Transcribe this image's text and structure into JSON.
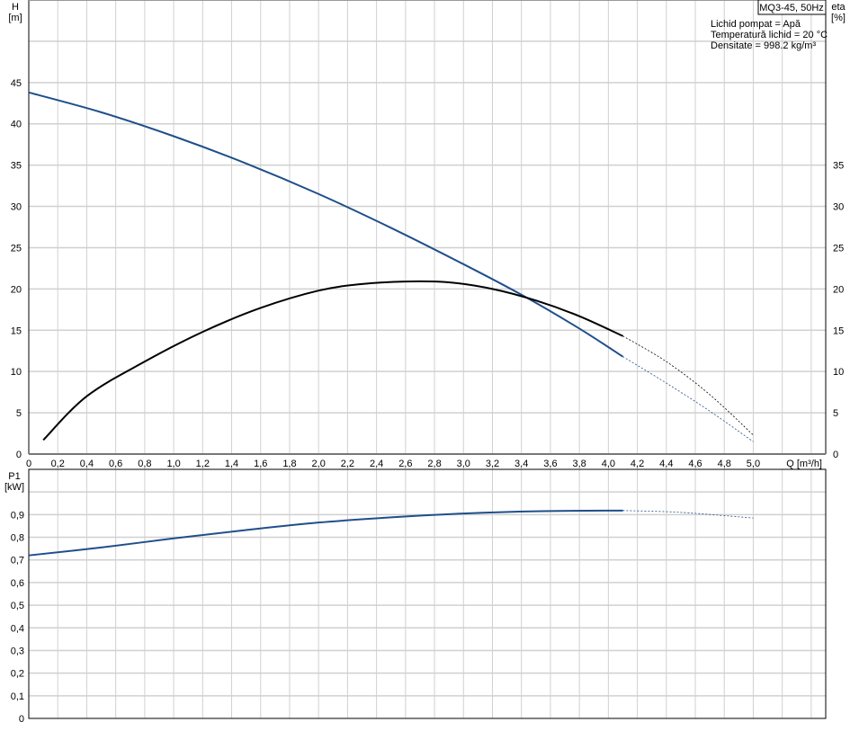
{
  "chart_data": [
    {
      "type": "line",
      "title": "MQ3-45, 50Hz",
      "annotations": [
        "Lichid pompat = Apă",
        "Temperatură lichid = 20 °C",
        "Densitate = 998.2 kg/m³"
      ],
      "xlabel": "Q [m³/h]",
      "ylabel": "H\n[m]",
      "ylabel_lines": [
        "H",
        "[m]"
      ],
      "y2label_lines": [
        "eta",
        "[%]"
      ],
      "xlim": [
        0,
        5.5
      ],
      "ylim": [
        0,
        55
      ],
      "grid": true,
      "x_ticks": [
        "0",
        "0,2",
        "0,4",
        "0,6",
        "0,8",
        "1,0",
        "1,2",
        "1,4",
        "1,6",
        "1,8",
        "2,0",
        "2,2",
        "2,4",
        "2,6",
        "2,8",
        "3,0",
        "3,2",
        "3,4",
        "3,6",
        "3,8",
        "4,0",
        "4,2",
        "4,4",
        "4,6",
        "4,8",
        "5,0"
      ],
      "y_ticks": [
        "0",
        "5",
        "10",
        "15",
        "20",
        "25",
        "30",
        "35",
        "40",
        "45"
      ],
      "y2_ticks": [
        "0",
        "5",
        "10",
        "15",
        "20",
        "25",
        "30",
        "35"
      ],
      "series": [
        {
          "name": "H",
          "color": "#1f4f8a",
          "x": [
            0,
            0.5,
            1.0,
            1.5,
            2.0,
            2.5,
            3.0,
            3.4,
            3.8,
            4.1
          ],
          "y": [
            43.8,
            41.4,
            38.5,
            35.2,
            31.5,
            27.4,
            23.0,
            19.3,
            15.2,
            11.8
          ],
          "extrapolated": {
            "x": [
              4.1,
              4.4,
              4.7,
              5.0
            ],
            "y": [
              11.8,
              8.6,
              5.2,
              1.5
            ]
          }
        },
        {
          "name": "eta",
          "color": "#000000",
          "x": [
            0.1,
            0.4,
            0.8,
            1.2,
            1.6,
            2.0,
            2.3,
            2.6,
            2.9,
            3.2,
            3.5,
            3.8,
            4.1
          ],
          "y": [
            1.7,
            7.0,
            11.2,
            14.8,
            17.7,
            19.8,
            20.6,
            20.9,
            20.8,
            20.0,
            18.6,
            16.7,
            14.3
          ],
          "extrapolated": {
            "x": [
              4.1,
              4.4,
              4.7,
              5.0
            ],
            "y": [
              14.3,
              11.2,
              7.2,
              2.3
            ]
          }
        }
      ]
    },
    {
      "type": "line",
      "ylabel_lines": [
        "P1",
        "[kW]"
      ],
      "xlim": [
        0,
        5.5
      ],
      "ylim": [
        0,
        1.1
      ],
      "grid": true,
      "y_ticks": [
        "0",
        "0,1",
        "0,2",
        "0,3",
        "0,4",
        "0,5",
        "0,6",
        "0,7",
        "0,8",
        "0,9"
      ],
      "series": [
        {
          "name": "P1",
          "color": "#1f4f8a",
          "x": [
            0,
            0.5,
            1.0,
            1.5,
            2.0,
            2.5,
            3.0,
            3.5,
            4.1
          ],
          "y": [
            0.72,
            0.755,
            0.795,
            0.832,
            0.865,
            0.888,
            0.905,
            0.915,
            0.918
          ],
          "extrapolated": {
            "x": [
              4.1,
              4.5,
              5.0
            ],
            "y": [
              0.918,
              0.91,
              0.885
            ]
          }
        }
      ]
    }
  ]
}
